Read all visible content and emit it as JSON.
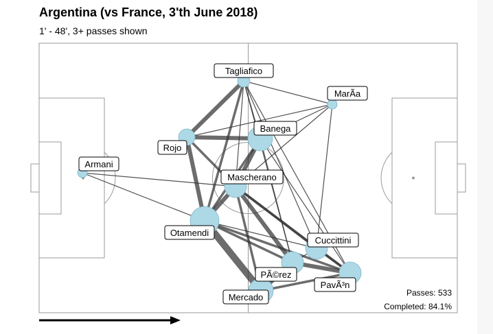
{
  "header": {
    "title": "Argentina (vs France, 3'th June 2018)",
    "subtitle": "1' - 48', 3+ passes shown"
  },
  "stats": {
    "passes": "Passes: 533",
    "completed": "Completed: 84.1%"
  },
  "colors": {
    "node": "#add8e6",
    "edge": "#333333",
    "pitch_line": "#999999"
  },
  "players": [
    {
      "id": "tagliafico",
      "label": "Tagliafico",
      "size": 3
    },
    {
      "id": "maria",
      "label": "MarÃ­a",
      "size": 2
    },
    {
      "id": "banega",
      "label": "Banega",
      "size": 6
    },
    {
      "id": "rojo",
      "label": "Rojo",
      "size": 4
    },
    {
      "id": "armani",
      "label": "Armani",
      "size": 2
    },
    {
      "id": "mascherano",
      "label": "Mascherano",
      "size": 5
    },
    {
      "id": "otamendi",
      "label": "Otamendi",
      "size": 7
    },
    {
      "id": "cuccittini",
      "label": "Cuccittini",
      "size": 5
    },
    {
      "id": "perez",
      "label": "PÃ©rez",
      "size": 5
    },
    {
      "id": "pavon",
      "label": "PavÃ³n",
      "size": 5
    },
    {
      "id": "mercado",
      "label": "Mercado",
      "size": 6
    }
  ],
  "links": [
    {
      "a": "otamendi",
      "b": "mercado",
      "w": 4
    },
    {
      "a": "otamendi",
      "b": "rojo",
      "w": 3
    },
    {
      "a": "otamendi",
      "b": "mascherano",
      "w": 3
    },
    {
      "a": "otamendi",
      "b": "banega",
      "w": 2
    },
    {
      "a": "otamendi",
      "b": "tagliafico",
      "w": 2
    },
    {
      "a": "otamendi",
      "b": "perez",
      "w": 2
    },
    {
      "a": "otamendi",
      "b": "pavon",
      "w": 2
    },
    {
      "a": "otamendi",
      "b": "cuccittini",
      "w": 1
    },
    {
      "a": "otamendi",
      "b": "armani",
      "w": 1
    },
    {
      "a": "rojo",
      "b": "tagliafico",
      "w": 3
    },
    {
      "a": "rojo",
      "b": "banega",
      "w": 3
    },
    {
      "a": "rojo",
      "b": "mascherano",
      "w": 2
    },
    {
      "a": "rojo",
      "b": "maria",
      "w": 1
    },
    {
      "a": "mascherano",
      "b": "perez",
      "w": 3
    },
    {
      "a": "mascherano",
      "b": "banega",
      "w": 3
    },
    {
      "a": "mascherano",
      "b": "pavon",
      "w": 2
    },
    {
      "a": "mascherano",
      "b": "cuccittini",
      "w": 2
    },
    {
      "a": "mascherano",
      "b": "mercado",
      "w": 2
    },
    {
      "a": "mascherano",
      "b": "tagliafico",
      "w": 1
    },
    {
      "a": "mascherano",
      "b": "armani",
      "w": 1
    },
    {
      "a": "mercado",
      "b": "perez",
      "w": 3
    },
    {
      "a": "mercado",
      "b": "pavon",
      "w": 2
    },
    {
      "a": "perez",
      "b": "pavon",
      "w": 3
    },
    {
      "a": "cuccittini",
      "b": "pavon",
      "w": 2
    },
    {
      "a": "cuccittini",
      "b": "perez",
      "w": 1
    },
    {
      "a": "banega",
      "b": "tagliafico",
      "w": 1
    },
    {
      "a": "banega",
      "b": "maria",
      "w": 1
    },
    {
      "a": "banega",
      "b": "pavon",
      "w": 1
    },
    {
      "a": "banega",
      "b": "perez",
      "w": 1
    },
    {
      "a": "tagliafico",
      "b": "maria",
      "w": 1
    },
    {
      "a": "tagliafico",
      "b": "cuccittini",
      "w": 1
    },
    {
      "a": "tagliafico",
      "b": "perez",
      "w": 1
    },
    {
      "a": "tagliafico",
      "b": "pavon",
      "w": 1
    },
    {
      "a": "maria",
      "b": "mascherano",
      "w": 1
    },
    {
      "a": "maria",
      "b": "cuccittini",
      "w": 1
    }
  ]
}
